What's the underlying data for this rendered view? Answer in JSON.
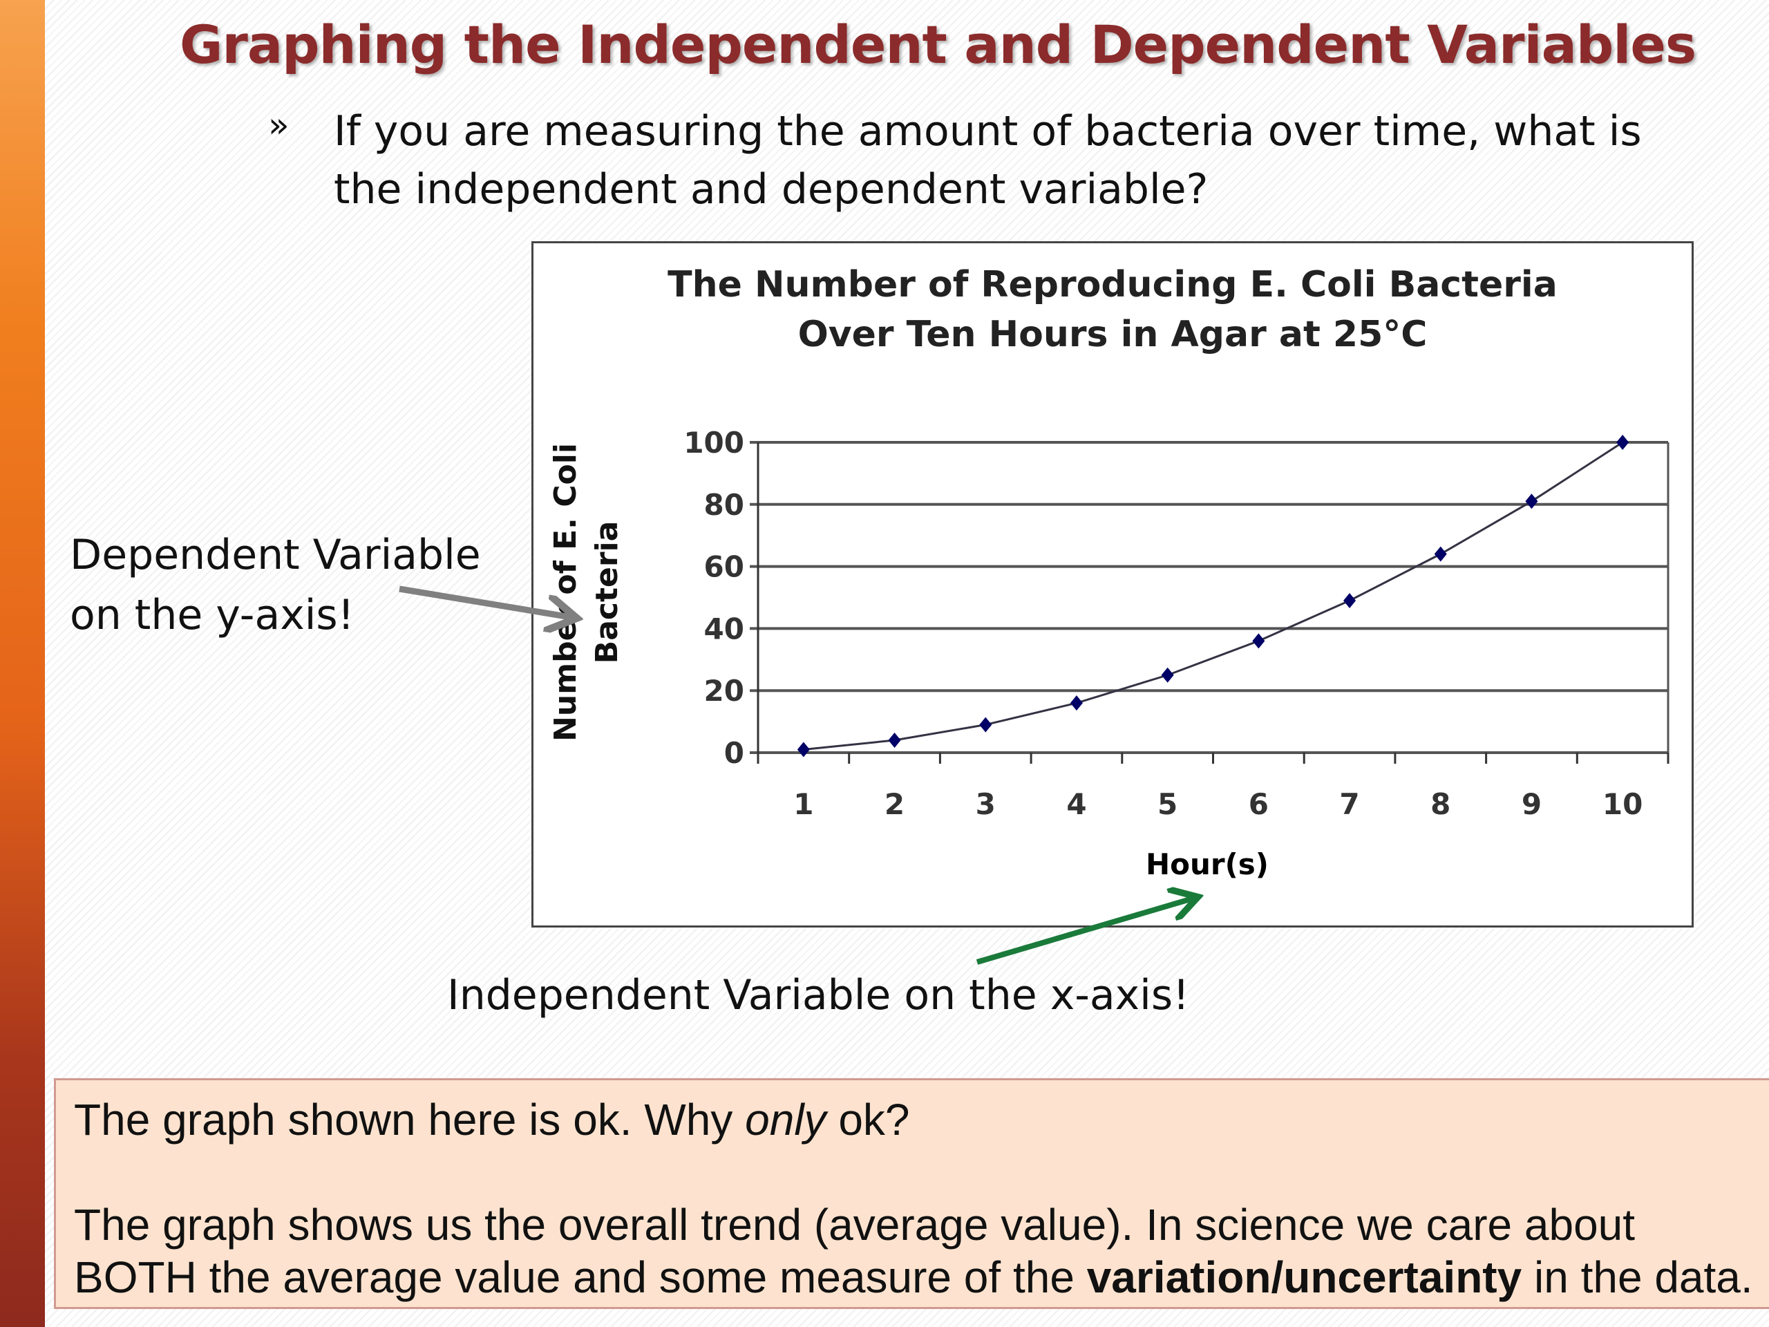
{
  "slide": {
    "title": "Graphing the Independent and Dependent Variables",
    "bullet_icon": "»",
    "question": "If you are measuring the amount of bacteria over time, what is the independent and dependent variable?",
    "dependent_line1": "Dependent Variable",
    "dependent_line2": "on the y-axis!",
    "independent_label": "Independent Variable on the x-axis!",
    "note": {
      "line1_a": "The graph shown here is ok.  Why ",
      "line1_em": "only",
      "line1_b": " ok?",
      "line2": "The graph shows us the overall trend (average value).  In science we care about",
      "line3_a": "BOTH the average value and some measure of the ",
      "line3_bold": "variation/uncertainty",
      "line3_b": " in the data."
    },
    "colors": {
      "sidebar": "#e4631a",
      "title": "#8b2b2b",
      "note_bg": "#fde3cf",
      "dependent_arrow": "#808080",
      "independent_arrow": "#1a7a3a",
      "series": "#000066"
    }
  },
  "chart_data": {
    "type": "line",
    "title_line1": "The Number of Reproducing E. Coli Bacteria",
    "title_line2": "Over Ten Hours in Agar at 25°C",
    "xlabel": "Hour(s)",
    "ylabel_line1": "Number of E. Coli",
    "ylabel_line2": "Bacteria",
    "x": [
      1,
      2,
      3,
      4,
      5,
      6,
      7,
      8,
      9,
      10
    ],
    "values": [
      1,
      4,
      9,
      16,
      25,
      36,
      49,
      64,
      81,
      100
    ],
    "ylim": [
      0,
      100
    ],
    "yticks": [
      "0",
      "20",
      "40",
      "60",
      "80",
      "100"
    ],
    "xticks": [
      "1",
      "2",
      "3",
      "4",
      "5",
      "6",
      "7",
      "8",
      "9",
      "10"
    ],
    "grid": true,
    "marker": "diamond"
  }
}
